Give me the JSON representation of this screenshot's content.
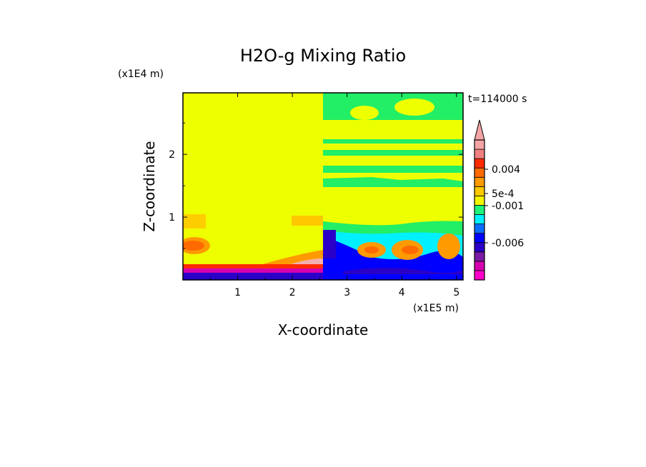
{
  "chart_data": {
    "type": "heatmap",
    "title": "H2O-g Mixing Ratio",
    "xlabel": "X-coordinate",
    "ylabel": "Z-coordinate",
    "x_unit": "(x1E5 m)",
    "y_unit": "(x1E4 m)",
    "time_label": "t=114000 s",
    "xlim": [
      0,
      5.12
    ],
    "ylim": [
      0,
      2.98
    ],
    "x_ticks": [
      "1",
      "2",
      "3",
      "4",
      "5"
    ],
    "y_ticks": [
      "1",
      "2"
    ],
    "colorbar": {
      "labels": [
        "0.004",
        "5e-4",
        "-0.001",
        "-0.006"
      ],
      "levels": [
        -0.01,
        -0.008,
        -0.006,
        -0.004,
        -0.002,
        -0.001,
        -0.0005,
        0,
        0.0005,
        0.001,
        0.002,
        0.004,
        0.006,
        0.008
      ],
      "colors": [
        "#ff00cc",
        "#d600b0",
        "#7a1aa6",
        "#2a00c8",
        "#0000ff",
        "#0a6cff",
        "#00f0ff",
        "#1ef47a",
        "#f4f600",
        "#ffc800",
        "#ff9a00",
        "#ff6a00",
        "#ff2a00",
        "#f08080",
        "#f4a4a4"
      ]
    },
    "regions": [
      {
        "x": [
          0,
          2.58
        ],
        "z": [
          0.25,
          2.98
        ],
        "color": "#eeff00"
      },
      {
        "x": [
          2.58,
          5.12
        ],
        "z": [
          0.9,
          2.98
        ],
        "color": "#eeff00"
      },
      {
        "x": [
          2.58,
          5.12
        ],
        "z": [
          2.6,
          2.98
        ],
        "color": "#22ee66"
      },
      {
        "x": [
          2.58,
          5.12
        ],
        "z": [
          0,
          0.9
        ],
        "color": "#22ee66"
      },
      {
        "x": [
          0,
          2.58
        ],
        "z": [
          0,
          0.2
        ],
        "color": "#e000b8"
      }
    ]
  }
}
